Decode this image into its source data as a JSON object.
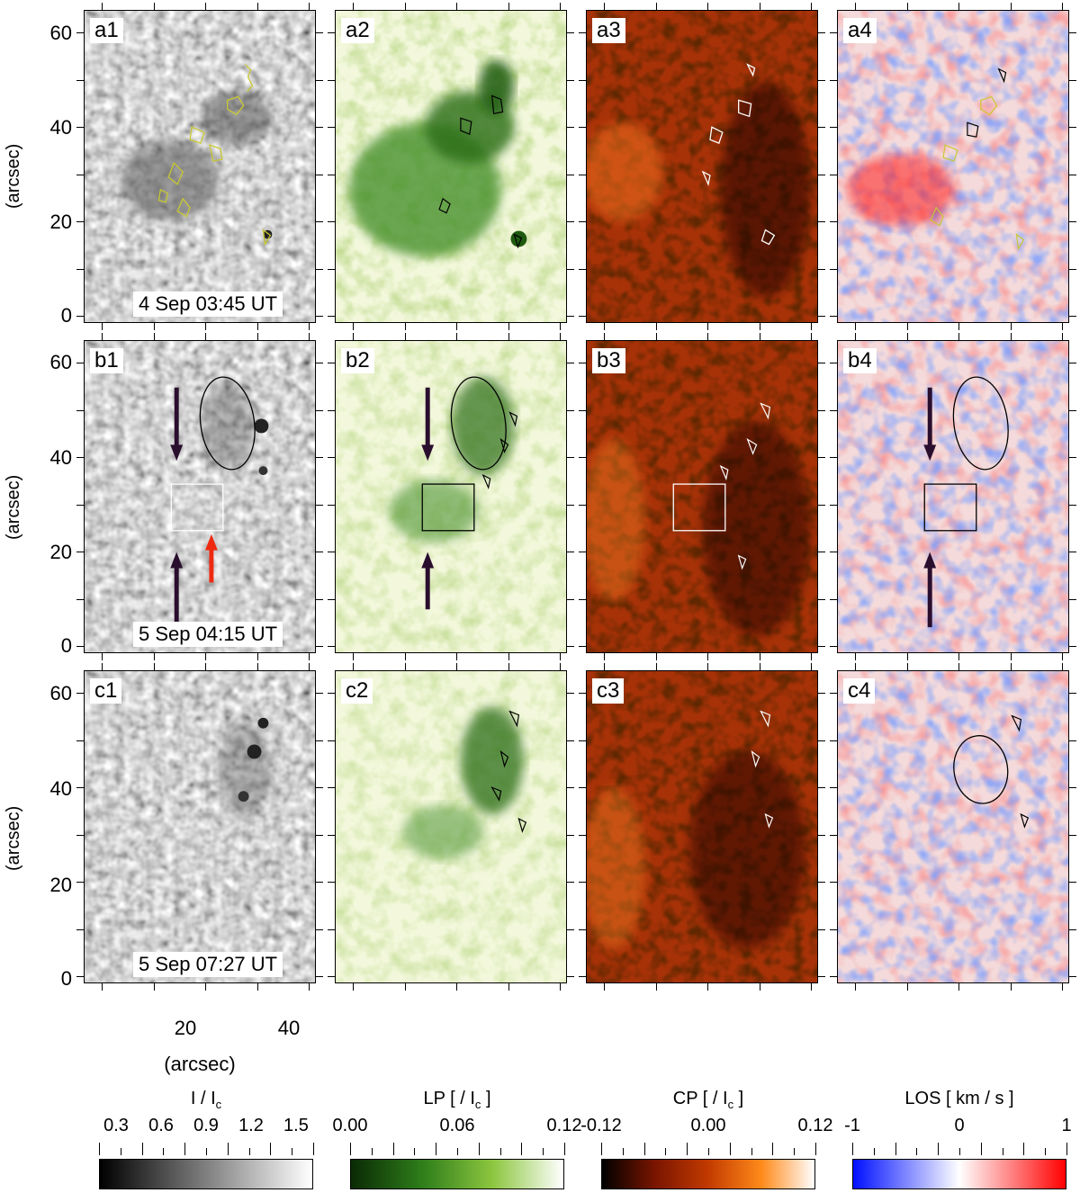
{
  "panels": {
    "a1": {
      "label": "a1",
      "timestamp": "4 Sep 03:45 UT"
    },
    "a2": {
      "label": "a2"
    },
    "a3": {
      "label": "a3"
    },
    "a4": {
      "label": "a4"
    },
    "b1": {
      "label": "b1",
      "timestamp": "5 Sep 04:15 UT"
    },
    "b2": {
      "label": "b2"
    },
    "b3": {
      "label": "b3"
    },
    "b4": {
      "label": "b4"
    },
    "c1": {
      "label": "c1",
      "timestamp": "5 Sep 07:27 UT"
    },
    "c2": {
      "label": "c2"
    },
    "c3": {
      "label": "c3"
    },
    "c4": {
      "label": "c4"
    }
  },
  "axes": {
    "y_ticks": [
      "60",
      "40",
      "20",
      "0"
    ],
    "y_title": "(arcsec)",
    "x_ticks": [
      "20",
      "40"
    ],
    "x_title": "(arcsec)"
  },
  "colorbars": [
    {
      "title": "I / I",
      "sub": "c",
      "ticks": [
        "0.3",
        "0.6",
        "0.9",
        "1.2",
        "1.5"
      ],
      "colors": [
        "#000000",
        "#ffffff"
      ]
    },
    {
      "title": "LP [ / I",
      "sub": "c",
      "suffix": " ]",
      "ticks": [
        "0.00",
        "0.06",
        "0.12"
      ],
      "colors": [
        "#0a2a05",
        "#2e7d1a",
        "#8cc63f",
        "#ffffff"
      ]
    },
    {
      "title": "CP [ / I",
      "sub": "c",
      "suffix": " ]",
      "ticks": [
        "-0.12",
        "0.00",
        "0.12"
      ],
      "colors": [
        "#000000",
        "#7a1500",
        "#c23a00",
        "#ff8a1a",
        "#ffffff"
      ]
    },
    {
      "title": "LOS [ km / s ]",
      "ticks": [
        "-1",
        "0",
        "1"
      ],
      "colors": [
        "#0010ff",
        "#ffffff",
        "#ff0000"
      ]
    }
  ],
  "colors": {
    "intensity_bg": "#8c8c8c",
    "lp_bg": "#f3f8dc",
    "cp_bg": "#a83208",
    "los_bg": "#f4dada",
    "arrow_dark": "#2a0e2e",
    "arrow_red": "#ee2a10",
    "contour_yellow": "#c8c832"
  }
}
